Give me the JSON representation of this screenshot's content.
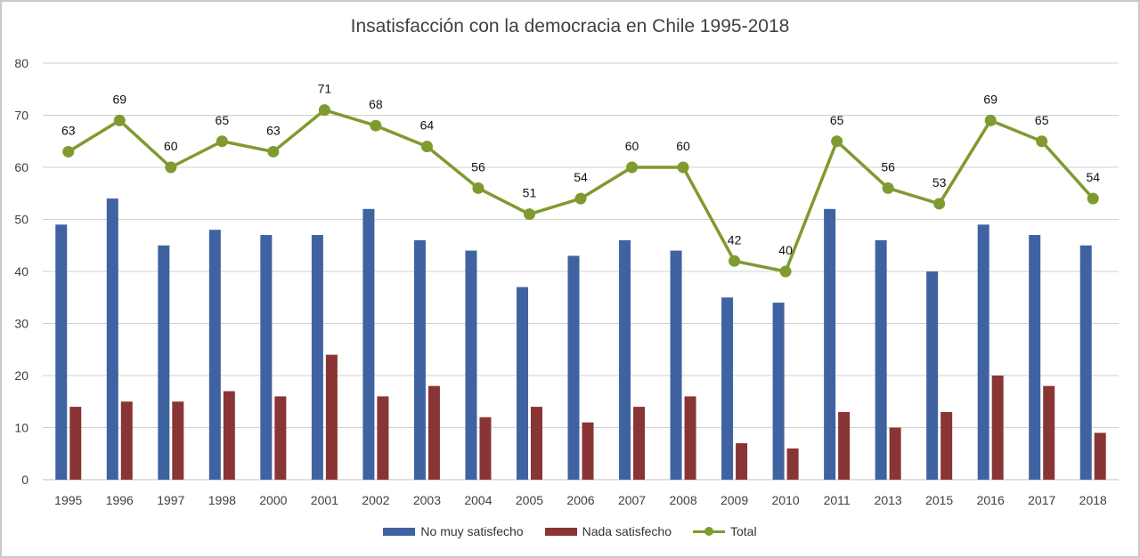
{
  "chart_data": {
    "type": "bar",
    "title": "Insatisfacción con la democracia en Chile 1995-2018",
    "xlabel": "",
    "ylabel": "",
    "ylim": [
      0,
      80
    ],
    "yticks": [
      0,
      10,
      20,
      30,
      40,
      50,
      60,
      70,
      80
    ],
    "grid": true,
    "legend_position": "bottom",
    "categories": [
      "1995",
      "1996",
      "1997",
      "1998",
      "2000",
      "2001",
      "2002",
      "2003",
      "2004",
      "2005",
      "2006",
      "2007",
      "2008",
      "2009",
      "2010",
      "2011",
      "2013",
      "2015",
      "2016",
      "2017",
      "2018"
    ],
    "series": [
      {
        "name": "No muy satisfecho",
        "type": "bar",
        "color": "#3E63A0",
        "values": [
          49,
          54,
          45,
          48,
          47,
          47,
          52,
          46,
          44,
          37,
          43,
          46,
          44,
          35,
          34,
          52,
          46,
          40,
          49,
          47,
          45
        ]
      },
      {
        "name": "Nada satisfecho",
        "type": "bar",
        "color": "#893535",
        "values": [
          14,
          15,
          15,
          17,
          16,
          24,
          16,
          18,
          12,
          14,
          11,
          14,
          16,
          7,
          6,
          13,
          10,
          13,
          20,
          18,
          9
        ]
      },
      {
        "name": "Total",
        "type": "line",
        "color": "#7F9A2E",
        "data_labels": true,
        "values": [
          63,
          69,
          60,
          65,
          63,
          71,
          68,
          64,
          56,
          51,
          54,
          60,
          60,
          42,
          40,
          65,
          56,
          53,
          69,
          65,
          54
        ]
      }
    ]
  }
}
